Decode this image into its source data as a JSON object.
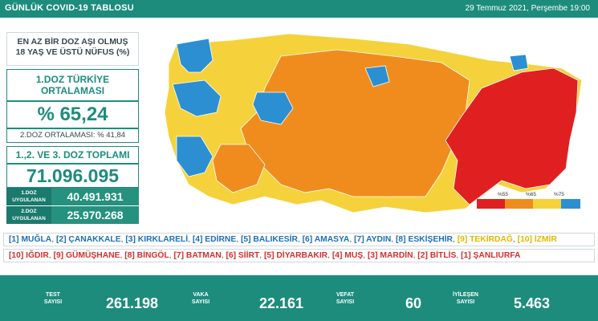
{
  "header": {
    "title": "GÜNLÜK COVID-19 TABLOSU",
    "date": "29 Temmuz 2021, Perşembe 19:00"
  },
  "panel": {
    "headline_line1": "EN AZ BİR DOZ AŞI OLMUŞ",
    "headline_line2": "18 YAŞ VE ÜSTÜ NÜFUS (%)",
    "avg_label_line1": "1.DOZ TÜRKİYE",
    "avg_label_line2": "ORTALAMASI",
    "avg_value": "% 65,24",
    "second_avg": "2.DOZ ORTALAMASI: % 41,84",
    "total_label": "1.,2. VE 3. DOZ TOPLAMI",
    "total_value": "71.096.095",
    "dose1_label_line1": "1.DOZ",
    "dose1_label_line2": "UYGULANAN",
    "dose1_value": "40.491.931",
    "dose2_label_line1": "2.DOZ",
    "dose2_label_line2": "UYGULANAN",
    "dose2_value": "25.970.268"
  },
  "legend": {
    "labels": [
      "%55",
      "%65",
      "%75"
    ],
    "colors": [
      "#e02020",
      "#f08c1e",
      "#f5d23c",
      "#2c8fd1"
    ]
  },
  "top_provinces": [
    {
      "text": "[1] MUĞLA",
      "color": "blue"
    },
    {
      "text": "[2] ÇANAKKALE",
      "color": "blue"
    },
    {
      "text": "[3] KIRKLARELİ",
      "color": "blue"
    },
    {
      "text": "[4] EDİRNE",
      "color": "blue"
    },
    {
      "text": "[5] BALIKESİR",
      "color": "blue"
    },
    {
      "text": "[6] AMASYA",
      "color": "blue"
    },
    {
      "text": "[7] AYDIN",
      "color": "blue"
    },
    {
      "text": "[8] ESKİŞEHİR",
      "color": "blue"
    },
    {
      "text": "[9] TEKİRDAĞ",
      "color": "yellow"
    },
    {
      "text": "[10] İZMİR",
      "color": "yellow"
    }
  ],
  "bottom_provinces": [
    {
      "text": "[10] IĞDIR"
    },
    {
      "text": "[9] GÜMÜŞHANE"
    },
    {
      "text": "[8] BİNGÖL"
    },
    {
      "text": "[7] BATMAN"
    },
    {
      "text": "[6] SİİRT"
    },
    {
      "text": "[5] DİYARBAKIR"
    },
    {
      "text": "[4] MUŞ"
    },
    {
      "text": "[3] MARDİN"
    },
    {
      "text": "[2] BİTLİS"
    },
    {
      "text": "[1] ŞANLIURFA"
    }
  ],
  "stats": {
    "test_label_line1": "TEST",
    "test_label_line2": "SAYISI",
    "test_value": "261.198",
    "case_label_line1": "VAKA",
    "case_label_line2": "SAYISI",
    "case_value": "22.161",
    "death_label_line1": "VEFAT",
    "death_label_line2": "SAYISI",
    "death_value": "60",
    "recovered_label_line1": "İYİLEŞEN",
    "recovered_label_line2": "SAYISI",
    "recovered_value": "5.463"
  },
  "colors": {
    "teal": "#1d8c7d",
    "red": "#e02020",
    "orange": "#f08c1e",
    "yellow": "#f5d23c",
    "blue": "#2c8fd1"
  }
}
